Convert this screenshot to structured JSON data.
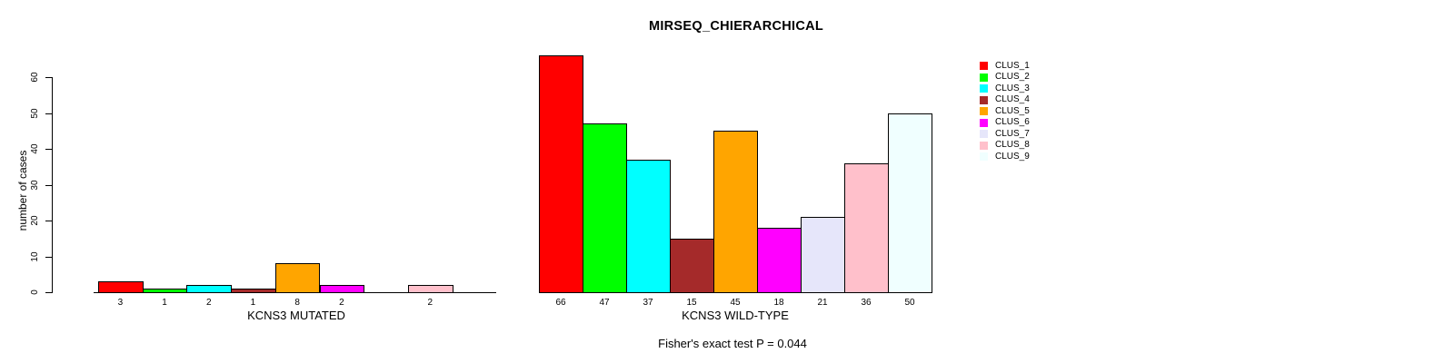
{
  "chart": {
    "title": "MIRSEQ_CHIERARCHICAL",
    "ylabel": "number of cases",
    "footnote": "Fisher's exact test P = 0.044",
    "y_ticks": [
      "0",
      "10",
      "20",
      "30",
      "40",
      "50",
      "60"
    ],
    "colors": [
      "#FF0000",
      "#00FF00",
      "#00FFFF",
      "#A52A2A",
      "#FFA500",
      "#FF00FF",
      "#E6E6FA",
      "#FFC0CB",
      "#F0FFFF"
    ],
    "panels": [
      {
        "key": "mutated",
        "xlabel": "KCNS3 MUTATED",
        "values": [
          3,
          1,
          2,
          1,
          8,
          2,
          0,
          2,
          0
        ]
      },
      {
        "key": "wildtype",
        "xlabel": "KCNS3 WILD-TYPE",
        "values": [
          66,
          47,
          37,
          15,
          45,
          18,
          21,
          36,
          50
        ]
      }
    ],
    "legend": [
      {
        "label": "CLUS_1",
        "color": "#FF0000"
      },
      {
        "label": "CLUS_2",
        "color": "#00FF00"
      },
      {
        "label": "CLUS_3",
        "color": "#00FFFF"
      },
      {
        "label": "CLUS_4",
        "color": "#A52A2A"
      },
      {
        "label": "CLUS_5",
        "color": "#FFA500"
      },
      {
        "label": "CLUS_6",
        "color": "#FF00FF"
      },
      {
        "label": "CLUS_7",
        "color": "#E6E6FA"
      },
      {
        "label": "CLUS_8",
        "color": "#FFC0CB"
      },
      {
        "label": "CLUS_9",
        "color": "#F0FFFF"
      }
    ]
  },
  "chart_data": {
    "type": "bar",
    "title": "MIRSEQ_CHIERARCHICAL",
    "xlabel": "",
    "ylabel": "number of cases",
    "ylim": [
      0,
      60
    ],
    "y_tick_step": 10,
    "grid": false,
    "legend_position": "right",
    "categories": [
      "CLUS_1",
      "CLUS_2",
      "CLUS_3",
      "CLUS_4",
      "CLUS_5",
      "CLUS_6",
      "CLUS_7",
      "CLUS_8",
      "CLUS_9"
    ],
    "series": [
      {
        "name": "KCNS3 MUTATED",
        "values": [
          3,
          1,
          2,
          1,
          8,
          2,
          0,
          2,
          0
        ]
      },
      {
        "name": "KCNS3 WILD-TYPE",
        "values": [
          66,
          47,
          37,
          15,
          45,
          18,
          21,
          36,
          50
        ]
      }
    ],
    "bar_colors": [
      "#FF0000",
      "#00FF00",
      "#00FFFF",
      "#A52A2A",
      "#FFA500",
      "#FF00FF",
      "#E6E6FA",
      "#FFC0CB",
      "#F0FFFF"
    ],
    "bar_value_labels_below_axis": true,
    "zero_values_hidden": true,
    "annotation": "Fisher's exact test P = 0.044"
  }
}
